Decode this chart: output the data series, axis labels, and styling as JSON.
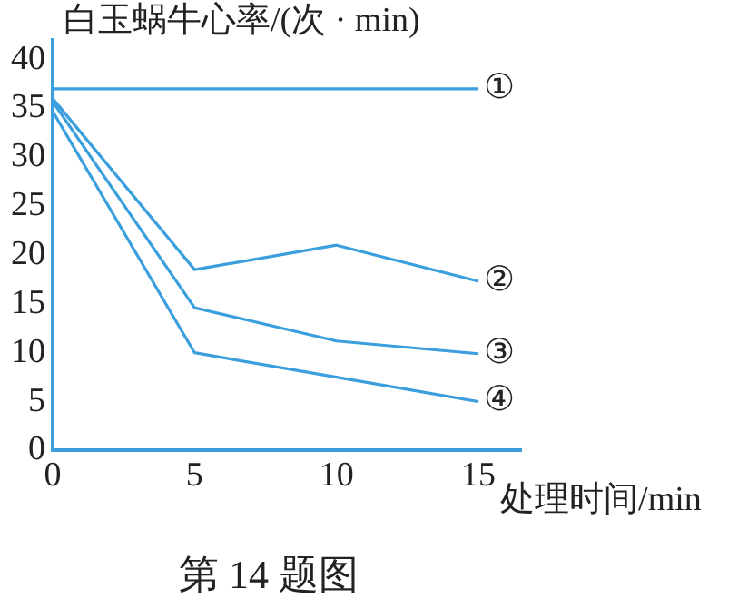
{
  "chart_data": {
    "type": "line",
    "title": "第 14 题图",
    "xlabel": "处理时间/min",
    "ylabel": "白玉蜗牛心率/(次 · min)",
    "x": [
      0,
      5,
      10,
      15
    ],
    "series": [
      {
        "name": "①",
        "color": "#3a9fdc",
        "x": [
          0,
          15
        ],
        "values": [
          37,
          37
        ]
      },
      {
        "name": "②",
        "color": "#3a9fdc",
        "values": [
          36,
          18.5,
          21,
          17.3
        ]
      },
      {
        "name": "③",
        "color": "#3a9fdc",
        "values": [
          35.7,
          14.6,
          11.2,
          9.9
        ]
      },
      {
        "name": "④",
        "color": "#3a9fdc",
        "values": [
          34.7,
          10,
          7.5,
          5
        ]
      }
    ],
    "xlim": [
      0,
      16.5
    ],
    "xticks": [
      0,
      5,
      10,
      15
    ],
    "ylim": [
      0,
      42
    ],
    "yticks": [
      0,
      5,
      10,
      15,
      20,
      25,
      30,
      35,
      40
    ],
    "grid": false,
    "legend": false,
    "marker": "none",
    "line_style": "solid"
  }
}
